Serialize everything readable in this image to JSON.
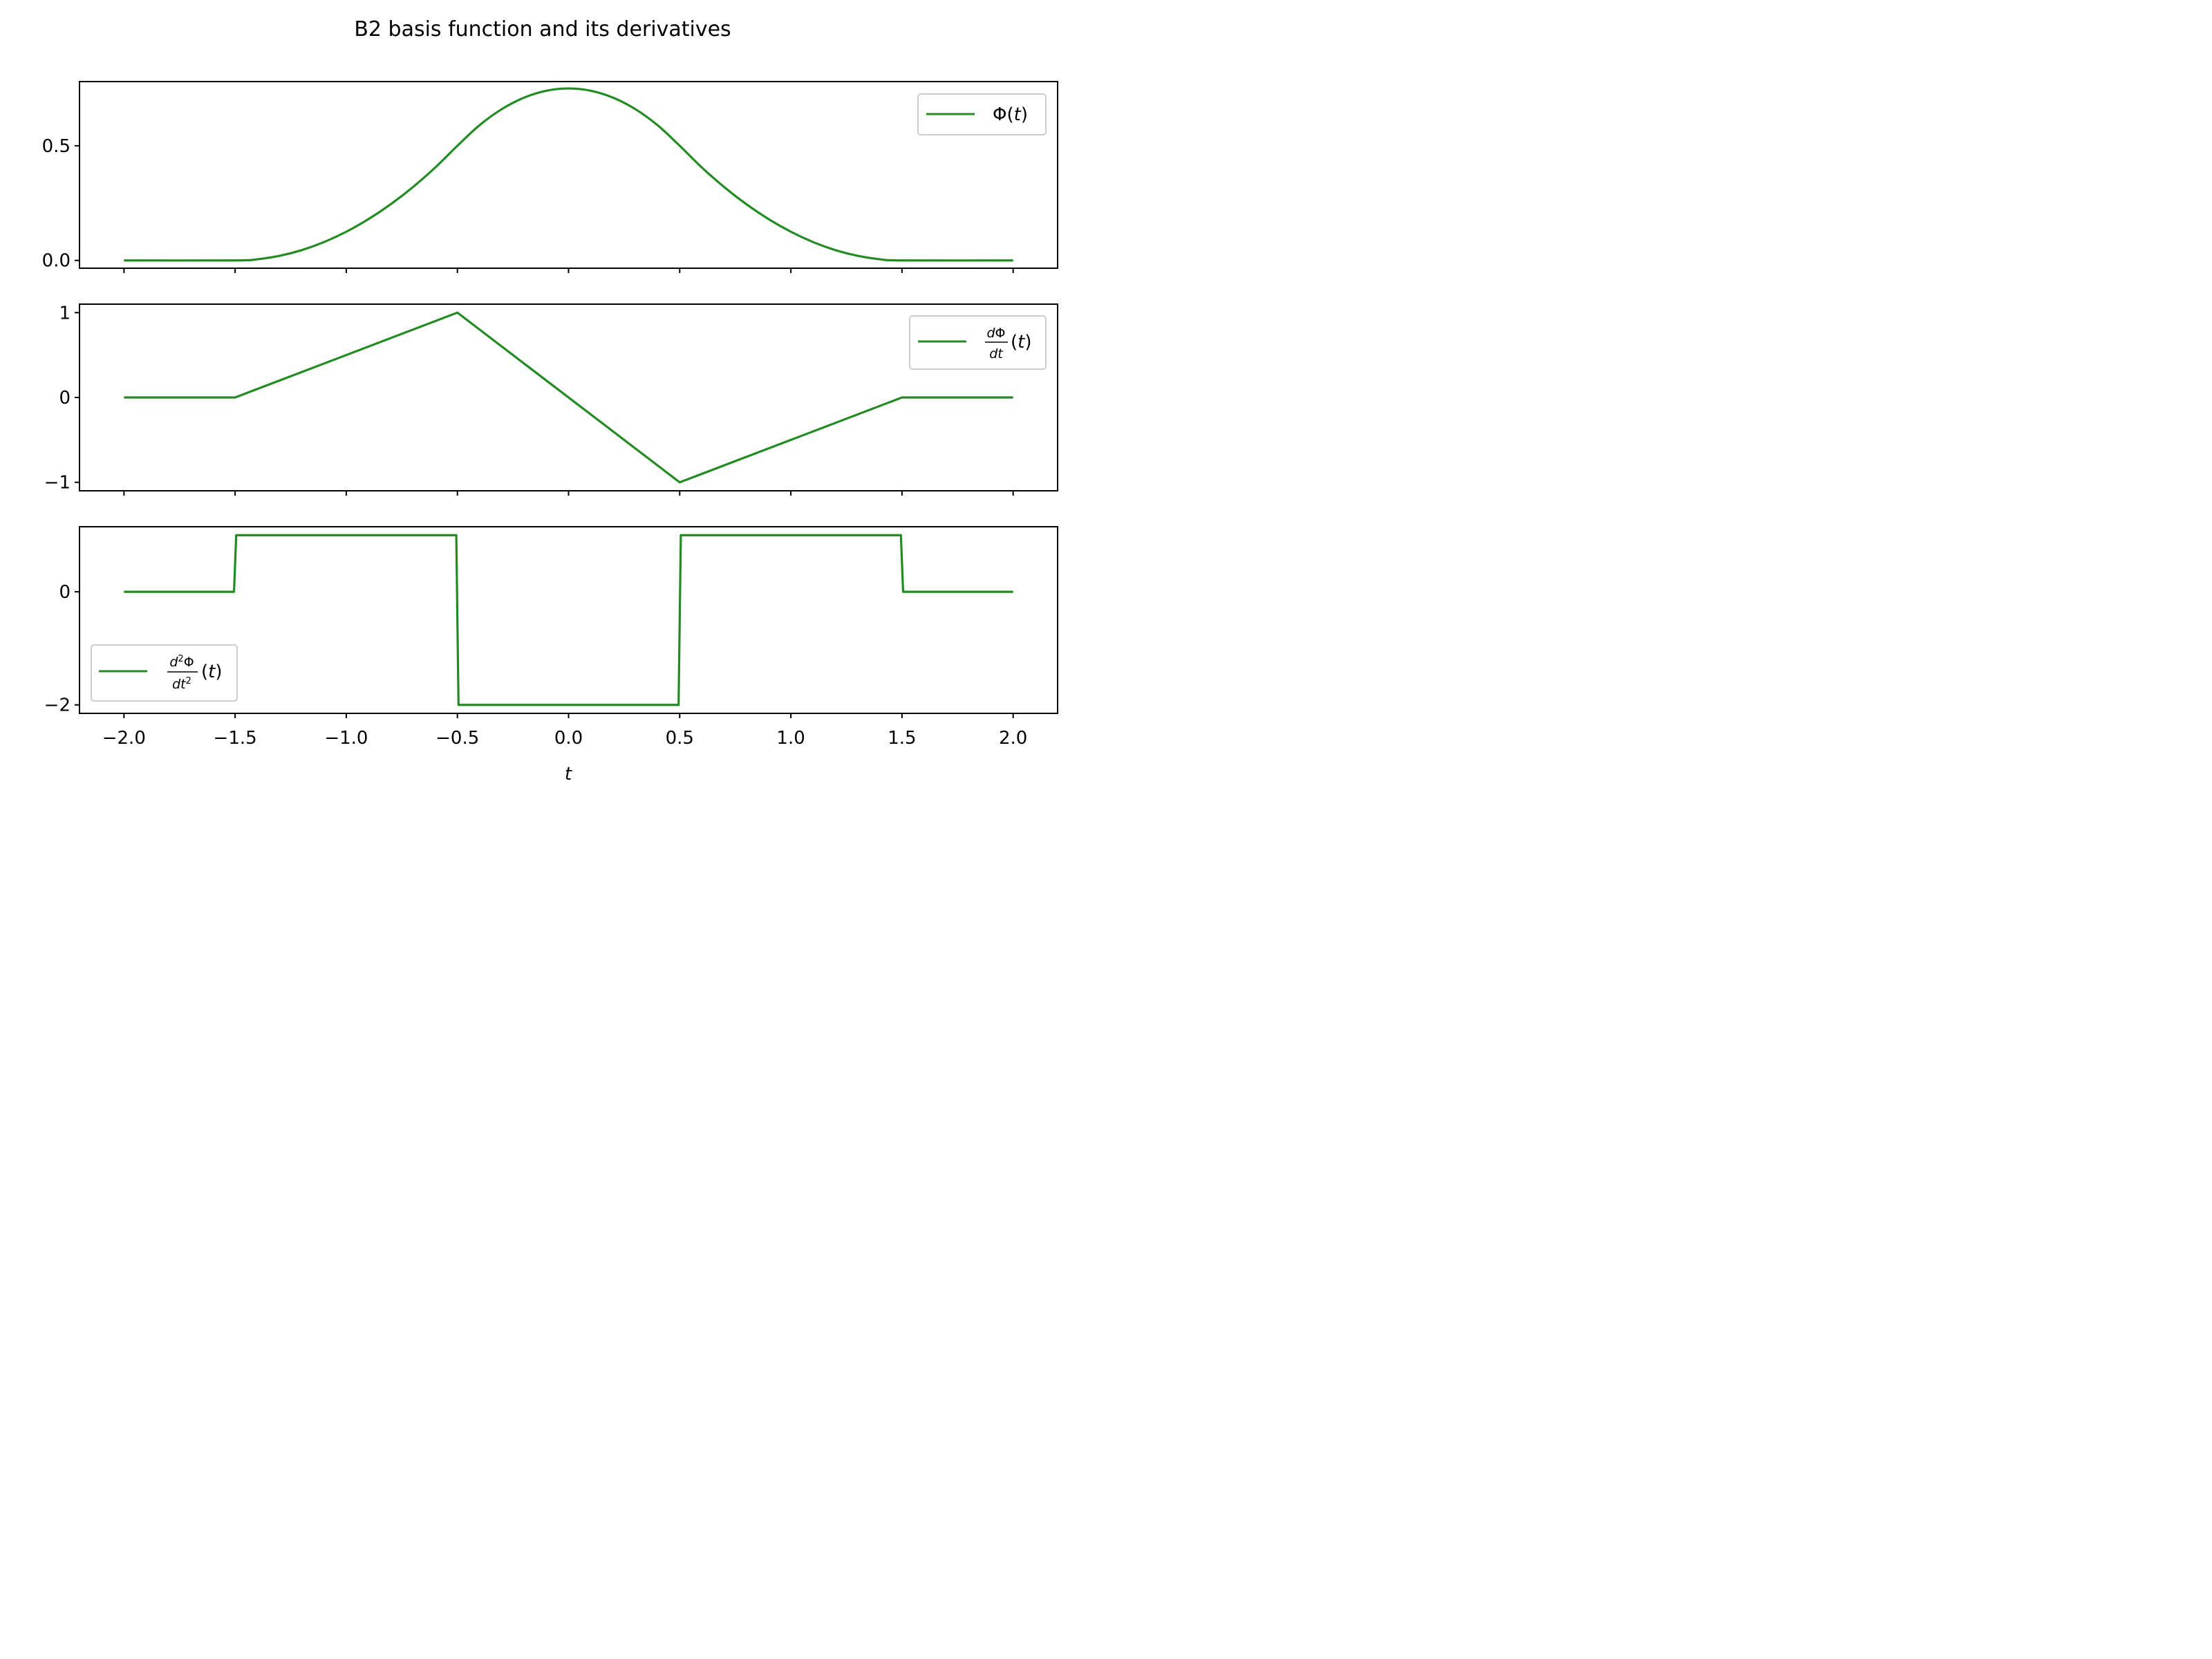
{
  "figure": {
    "title": "B2 basis function and its derivatives"
  },
  "chart_data": [
    {
      "type": "line",
      "xlim": [
        -2.2,
        2.2
      ],
      "ylim": [
        -0.034,
        0.78
      ],
      "yticks": [
        {
          "value": 0.0,
          "label": "0.0"
        },
        {
          "value": 0.5,
          "label": "0.5"
        }
      ],
      "xticks": [
        -2.0,
        -1.5,
        -1.0,
        -0.5,
        0.0,
        0.5,
        1.0,
        1.5,
        2.0
      ],
      "show_xtick_labels": false,
      "legend": {
        "position": "upper right",
        "label": "Φ(t)"
      },
      "series": [
        {
          "name": "Φ(t)",
          "color": "#228b22",
          "kind": "curve",
          "x": [
            -2.0,
            -1.5,
            -1.4,
            -1.3,
            -1.2,
            -1.1,
            -1.0,
            -0.9,
            -0.8,
            -0.7,
            -0.6,
            -0.5,
            -0.4,
            -0.3,
            -0.2,
            -0.1,
            0.0,
            0.1,
            0.2,
            0.3,
            0.4,
            0.5,
            0.6,
            0.7,
            0.8,
            0.9,
            1.0,
            1.1,
            1.2,
            1.3,
            1.4,
            1.5,
            2.0
          ],
          "y": [
            0.0,
            0.0,
            0.005,
            0.02,
            0.045,
            0.08,
            0.125,
            0.18,
            0.245,
            0.32,
            0.405,
            0.5,
            0.59,
            0.66,
            0.71,
            0.74,
            0.75,
            0.74,
            0.71,
            0.66,
            0.59,
            0.5,
            0.405,
            0.32,
            0.245,
            0.18,
            0.125,
            0.08,
            0.045,
            0.02,
            0.005,
            0.0,
            0.0
          ]
        }
      ]
    },
    {
      "type": "line",
      "xlim": [
        -2.2,
        2.2
      ],
      "ylim": [
        -1.1,
        1.1
      ],
      "yticks": [
        {
          "value": -1,
          "label": "−1"
        },
        {
          "value": 0,
          "label": "0"
        },
        {
          "value": 1,
          "label": "1"
        }
      ],
      "xticks": [
        -2.0,
        -1.5,
        -1.0,
        -0.5,
        0.0,
        0.5,
        1.0,
        1.5,
        2.0
      ],
      "show_xtick_labels": false,
      "legend": {
        "position": "upper right",
        "label": "dΦ/dt (t)"
      },
      "series": [
        {
          "name": "dΦ/dt (t)",
          "color": "#228b22",
          "kind": "polyline",
          "x": [
            -2.0,
            -1.5,
            -0.5,
            0.5,
            1.5,
            2.0
          ],
          "y": [
            0,
            0,
            1,
            -1,
            0,
            0
          ]
        }
      ]
    },
    {
      "type": "line",
      "xlim": [
        -2.2,
        2.2
      ],
      "ylim": [
        -2.15,
        1.15
      ],
      "yticks": [
        {
          "value": -2,
          "label": "−2"
        },
        {
          "value": 0,
          "label": "0"
        }
      ],
      "xticks": [
        -2.0,
        -1.5,
        -1.0,
        -0.5,
        0.0,
        0.5,
        1.0,
        1.5,
        2.0
      ],
      "xtick_labels": [
        "−2.0",
        "−1.5",
        "−1.0",
        "−0.5",
        "0.0",
        "0.5",
        "1.0",
        "1.5",
        "2.0"
      ],
      "show_xtick_labels": true,
      "xlabel": "t",
      "legend": {
        "position": "lower left",
        "label": "d²Φ/dt² (t)"
      },
      "series": [
        {
          "name": "d²Φ/dt² (t)",
          "color": "#228b22",
          "kind": "polyline",
          "x": [
            -2.0,
            -1.505,
            -1.495,
            -0.505,
            -0.495,
            0.495,
            0.505,
            1.495,
            1.505,
            2.0
          ],
          "y": [
            0,
            0,
            1,
            1,
            -2,
            -2,
            1,
            1,
            0,
            0
          ]
        }
      ]
    }
  ]
}
